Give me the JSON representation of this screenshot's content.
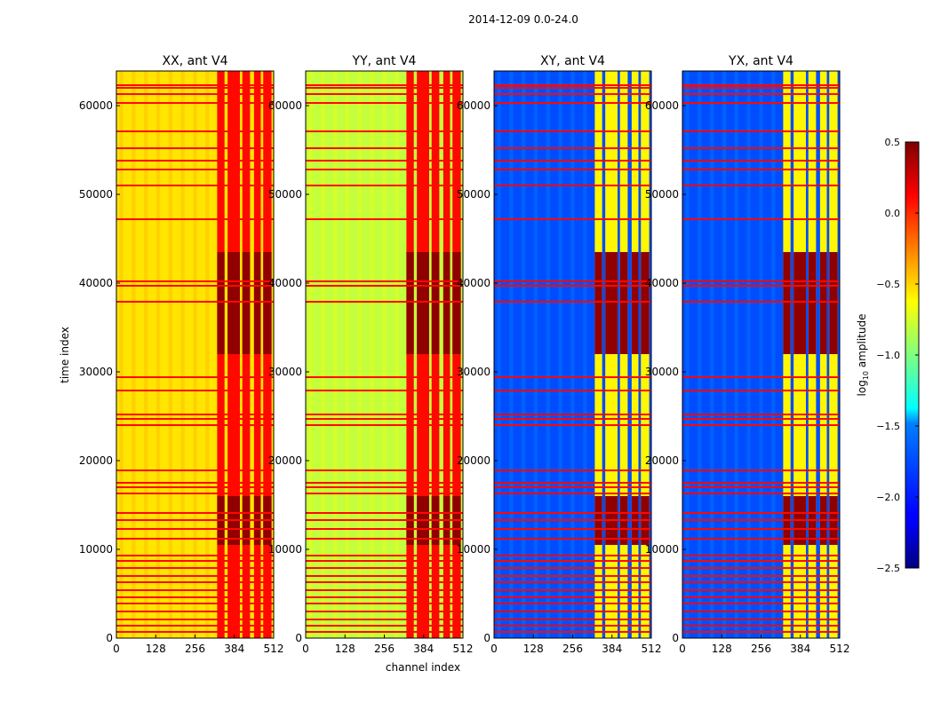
{
  "chart_data": {
    "type": "heatmap",
    "title": "2014-12-09 0.0-24.0",
    "xlabel": "channel index",
    "ylabel": "time index",
    "xlim": [
      0,
      512
    ],
    "ylim": [
      0,
      63900
    ],
    "x_ticks": [
      0,
      128,
      256,
      384,
      512
    ],
    "y_ticks": [
      0,
      10000,
      20000,
      30000,
      40000,
      50000,
      60000
    ],
    "panels": [
      {
        "title": "XX, ant V4",
        "base_level": -0.55,
        "rfi_level": 0.1
      },
      {
        "title": "YY, ant V4",
        "base_level": -0.8,
        "rfi_level": 0.1
      },
      {
        "title": "XY, ant V4",
        "base_level": -1.9,
        "rfi_level": -0.6
      },
      {
        "title": "YX, ant V4",
        "base_level": -1.9,
        "rfi_level": -0.6
      }
    ],
    "colorbar": {
      "label_prefix": "log",
      "label_sub": "10",
      "label_suffix": " amplitude",
      "range": [
        -2.5,
        0.5
      ],
      "ticks": [
        "0.5",
        "0.0",
        "−0.5",
        "−1.0",
        "−1.5",
        "−2.0",
        "−2.5"
      ],
      "tick_values": [
        0.5,
        0.0,
        -0.5,
        -1.0,
        -1.5,
        -2.0,
        -2.5
      ],
      "colormap": "jet"
    },
    "rfi_band_channels": [
      [
        328,
        352
      ],
      [
        362,
        402
      ],
      [
        410,
        435
      ],
      [
        448,
        470
      ],
      [
        478,
        505
      ]
    ],
    "strong_rfi_time_ranges": [
      [
        10500,
        16000
      ],
      [
        32000,
        43500
      ]
    ],
    "flagged_rows_time": [
      700,
      1400,
      2100,
      3000,
      3900,
      4600,
      5400,
      6300,
      7000,
      7900,
      8700,
      9300,
      11200,
      12300,
      13300,
      14100,
      16300,
      17000,
      17500,
      18900,
      24000,
      24700,
      25200,
      27900,
      29400,
      37900,
      39700,
      40200,
      47200,
      51000,
      52800,
      53800,
      55200,
      57100,
      60300,
      61300,
      62000,
      62300
    ]
  }
}
